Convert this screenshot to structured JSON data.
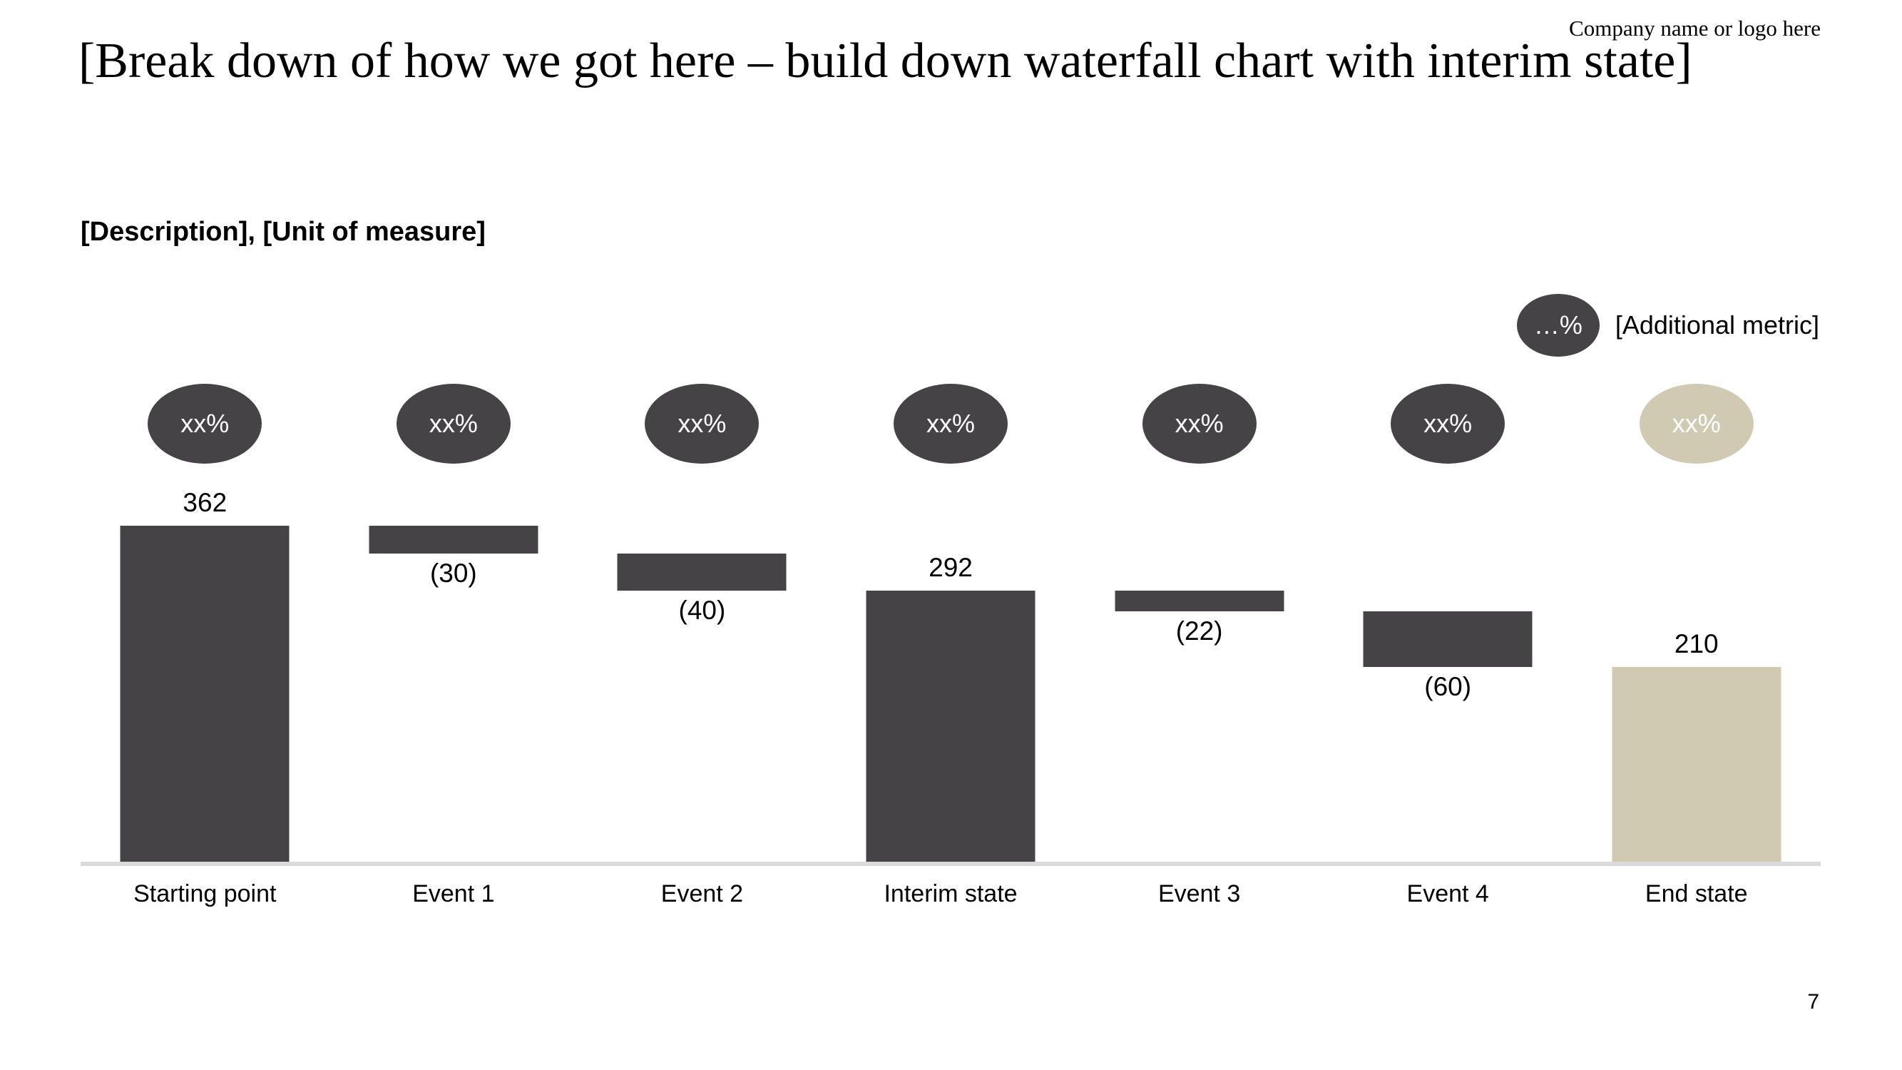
{
  "slide": {
    "company": "Company name or logo here",
    "title": "[Break down of how we got here – build down waterfall chart with interim state]",
    "subtitle": "[Description], [Unit of measure]",
    "page_number": "7"
  },
  "legend": {
    "badge": "…%",
    "badge_color": "dark",
    "label": "[Additional metric]"
  },
  "colors": {
    "dark": "#464347",
    "beige": "#d1cab2",
    "axis": "#d9d9d9",
    "badge_text": "#ffffff"
  },
  "chart_data": {
    "type": "waterfall",
    "title": "[Break down of how we got here – build down waterfall chart with interim state]",
    "subtitle": "[Description], [Unit of measure]",
    "categories": [
      "Starting point",
      "Event 1",
      "Event 2",
      "Interim state",
      "Event 3",
      "Event 4",
      "End state"
    ],
    "ylim": [
      0,
      516
    ],
    "grid": false,
    "legend_position": "top-right",
    "bars": [
      {
        "category": "Starting point",
        "badge": "xx%",
        "role": "total",
        "value": 362,
        "start": 0,
        "end": 362,
        "label": "362",
        "label_position": "above",
        "color": "dark"
      },
      {
        "category": "Event 1",
        "badge": "xx%",
        "role": "decrease",
        "value": -30,
        "start": 332,
        "end": 362,
        "label": "(30)",
        "label_position": "below",
        "color": "dark"
      },
      {
        "category": "Event 2",
        "badge": "xx%",
        "role": "decrease",
        "value": -40,
        "start": 292,
        "end": 332,
        "label": "(40)",
        "label_position": "below",
        "color": "dark"
      },
      {
        "category": "Interim state",
        "badge": "xx%",
        "role": "subtotal",
        "value": 292,
        "start": 0,
        "end": 292,
        "label": "292",
        "label_position": "above",
        "color": "dark"
      },
      {
        "category": "Event 3",
        "badge": "xx%",
        "role": "decrease",
        "value": -22,
        "start": 270,
        "end": 292,
        "label": "(22)",
        "label_position": "below",
        "color": "dark"
      },
      {
        "category": "Event 4",
        "badge": "xx%",
        "role": "decrease",
        "value": -60,
        "start": 210,
        "end": 270,
        "label": "(60)",
        "label_position": "below",
        "color": "dark"
      },
      {
        "category": "End state",
        "badge": "xx%",
        "role": "total",
        "value": 210,
        "start": 0,
        "end": 210,
        "label": "210",
        "label_position": "above",
        "color": "beige"
      }
    ]
  }
}
